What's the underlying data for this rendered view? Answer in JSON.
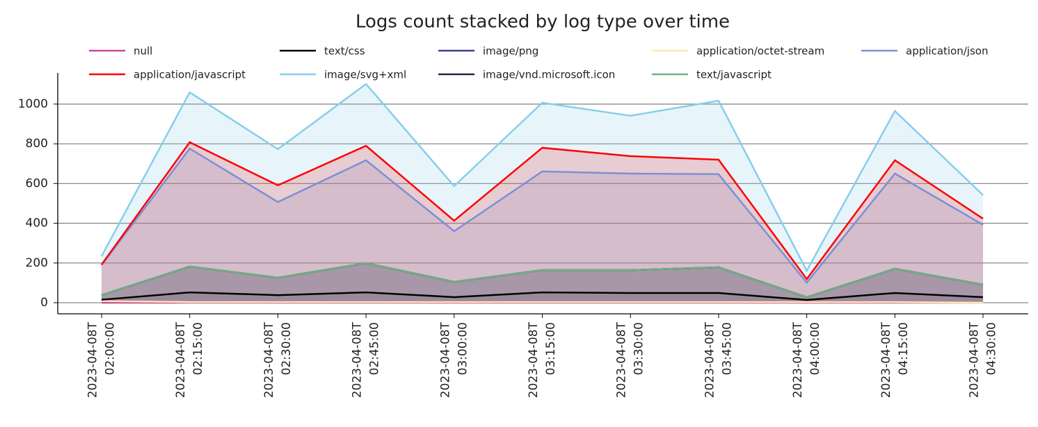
{
  "chart_data": {
    "type": "stacked_area",
    "title": "Logs count stacked by log type over time",
    "categories": [
      "2023-04-08T\n02:00:00",
      "2023-04-08T\n02:15:00",
      "2023-04-08T\n02:30:00",
      "2023-04-08T\n02:45:00",
      "2023-04-08T\n03:00:00",
      "2023-04-08T\n03:15:00",
      "2023-04-08T\n03:30:00",
      "2023-04-08T\n03:45:00",
      "2023-04-08T\n04:00:00",
      "2023-04-08T\n04:15:00",
      "2023-04-08T\n04:30:00"
    ],
    "series": [
      {
        "name": "null",
        "color": "#c8479a",
        "values": [
          0,
          0,
          0,
          0,
          0,
          0,
          0,
          0,
          0,
          0,
          0
        ]
      },
      {
        "name": "application/octet-stream",
        "color": "#fde8b0",
        "values": [
          8,
          3,
          3,
          3,
          3,
          3,
          3,
          3,
          3,
          3,
          0
        ]
      },
      {
        "name": "text/css",
        "color": "#000000",
        "values": [
          7,
          49,
          35,
          49,
          25,
          49,
          46,
          46,
          11,
          46,
          28
        ]
      },
      {
        "name": "image/png",
        "color": "#3b3f8c",
        "values": [
          23,
          130,
          88,
          147,
          77,
          112,
          115,
          129,
          14,
          122,
          63
        ]
      },
      {
        "name": "image/vnd.microsoft.icon",
        "color": "#25254a",
        "values": [
          0,
          0,
          0,
          0,
          0,
          0,
          0,
          0,
          0,
          0,
          0
        ]
      },
      {
        "name": "text/javascript",
        "color": "#6db37f",
        "values": [
          0,
          0,
          0,
          0,
          0,
          0,
          0,
          0,
          0,
          0,
          0
        ]
      },
      {
        "name": "application/json",
        "color": "#7b8fd6",
        "values": [
          151,
          594,
          381,
          518,
          255,
          497,
          486,
          469,
          73,
          479,
          301
        ]
      },
      {
        "name": "application/javascript",
        "color": "#ff0000",
        "values": [
          3,
          32,
          84,
          73,
          53,
          119,
          88,
          73,
          18,
          67,
          31
        ]
      },
      {
        "name": "image/svg+xml",
        "color": "#87ceeb",
        "values": [
          42,
          251,
          182,
          311,
          174,
          227,
          203,
          297,
          42,
          248,
          119
        ]
      }
    ],
    "ylim": [
      -56,
      1157
    ],
    "yticks": [
      0,
      200,
      400,
      600,
      800,
      1000
    ],
    "grid": true
  }
}
